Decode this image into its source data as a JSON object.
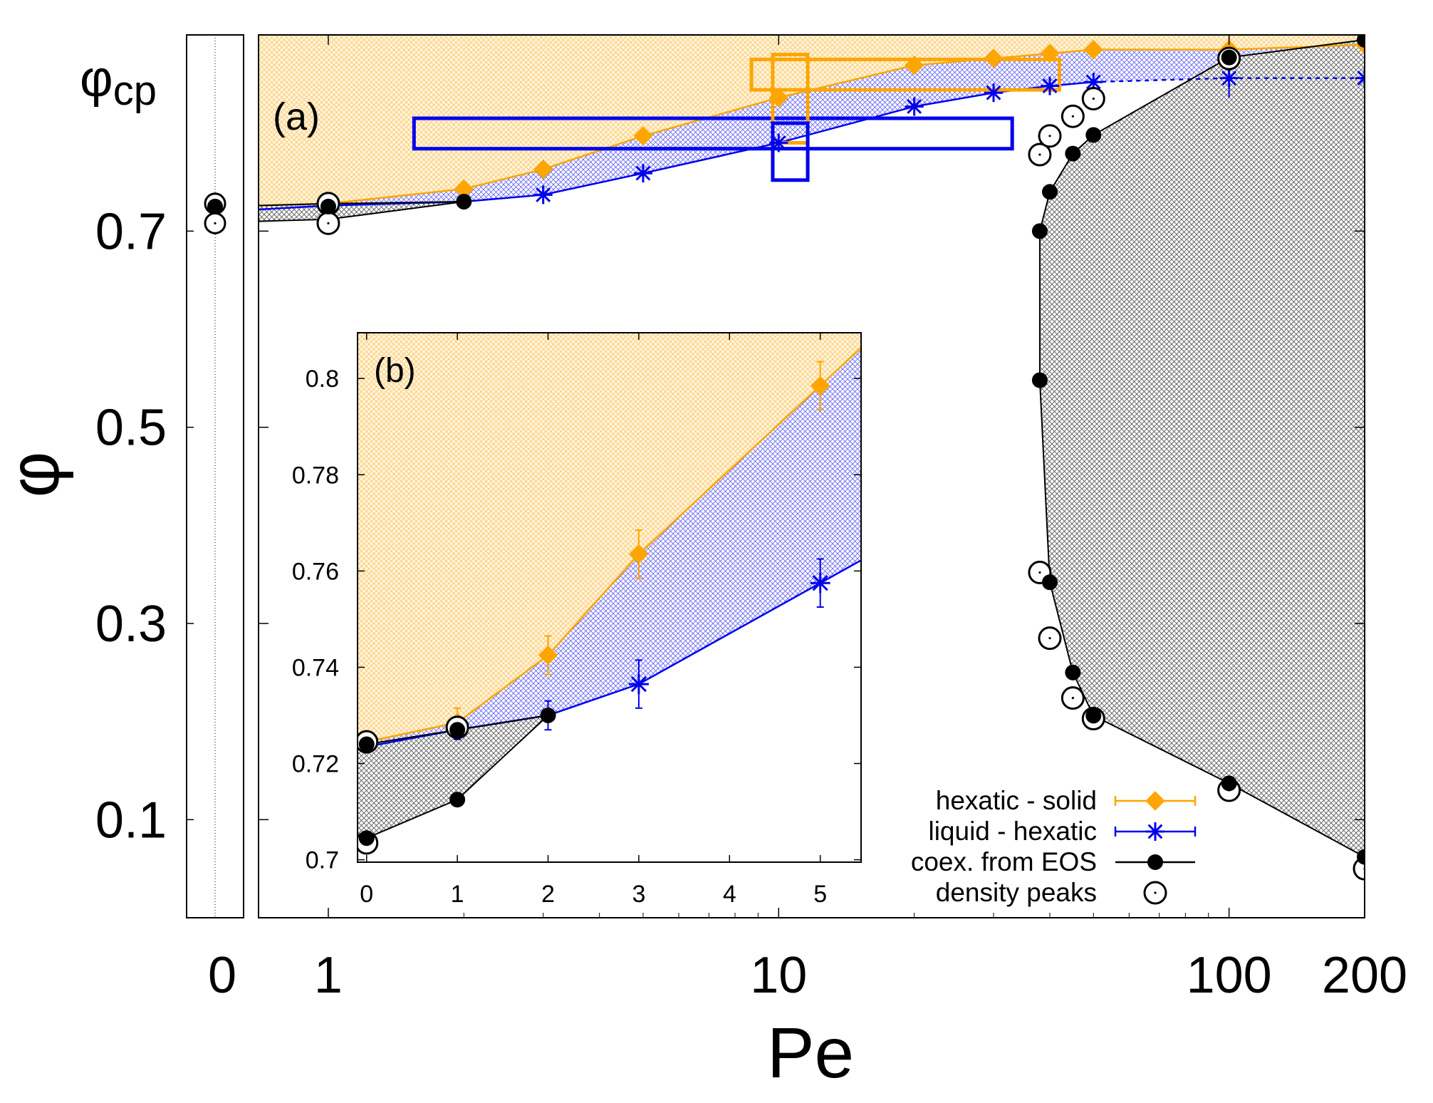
{
  "chart_data": {
    "type": "line",
    "title": "",
    "xlabel": "Pe",
    "ylabel": "φ",
    "colors": {
      "hexatic_solid": "#ffa500",
      "liquid_hexatic": "#0000ee",
      "coex": "#000000",
      "cp_line": "#000000"
    },
    "main": {
      "panel_label": "(a)",
      "xscale": "log",
      "xlim": [
        0.7,
        200
      ],
      "ylim": [
        0.0,
        0.9
      ],
      "xticks": [
        1,
        10,
        100,
        200
      ],
      "xticklabels": [
        "1",
        "10",
        "100",
        "200"
      ],
      "yticks": [
        0.1,
        0.3,
        0.5,
        0.7
      ],
      "yticklabels": [
        "0.1",
        "0.3",
        "0.5",
        "0.7"
      ],
      "phi_cp": 0.907,
      "phi_cp_label": "φ",
      "phi_cp_sub": "cp",
      "series": [
        {
          "name": "hexatic - solid",
          "key": "hexatic_solid",
          "marker": "diamond",
          "x": [
            0.7,
            1,
            2,
            3,
            5,
            10,
            20,
            30,
            40,
            50,
            100,
            200
          ],
          "y": [
            0.726,
            0.728,
            0.743,
            0.763,
            0.797,
            0.836,
            0.869,
            0.876,
            0.881,
            0.885,
            0.885,
            0.89
          ]
        },
        {
          "name": "liquid - hexatic",
          "key": "liquid_hexatic",
          "marker": "star",
          "x": [
            0.7,
            1,
            2,
            3,
            5,
            10,
            20,
            30,
            40,
            50,
            100,
            200
          ],
          "y": [
            0.722,
            0.726,
            0.73,
            0.737,
            0.759,
            0.79,
            0.827,
            0.841,
            0.848,
            0.852,
            0.856,
            0.856
          ]
        },
        {
          "name": "coex. from EOS",
          "key": "coex",
          "marker": "dot",
          "x": [
            0.7,
            1,
            2,
            200,
            100,
            50,
            45,
            40,
            38,
            38,
            40,
            45,
            50,
            100,
            200
          ],
          "y": [
            0.71,
            0.712,
            0.73,
            0.895,
            0.877,
            0.798,
            0.779,
            0.74,
            0.7,
            0.548,
            0.342,
            0.25,
            0.206,
            0.137,
            0.062
          ],
          "markers_x": [
            1,
            2,
            38,
            38,
            40,
            40,
            45,
            45,
            50,
            50,
            100,
            100,
            200,
            200
          ],
          "markers_y": [
            0.725,
            0.73,
            0.7,
            0.548,
            0.74,
            0.342,
            0.779,
            0.25,
            0.798,
            0.206,
            0.877,
            0.137,
            0.895,
            0.062
          ]
        },
        {
          "name": "density peaks",
          "key": "peaks",
          "marker": "circle-dot",
          "x": [
            1,
            1,
            38,
            40,
            45,
            50,
            38,
            40,
            45,
            50,
            100,
            100,
            200
          ],
          "y": [
            0.728,
            0.708,
            0.778,
            0.797,
            0.817,
            0.835,
            0.352,
            0.285,
            0.224,
            0.203,
            0.876,
            0.13,
            0.05
          ]
        }
      ],
      "boxes": [
        {
          "key": "liquid_hexatic",
          "x0": 1.55,
          "x1": 33,
          "y0": 0.784,
          "y1": 0.815
        },
        {
          "key": "hexatic_solid",
          "x0": 8.7,
          "x1": 42,
          "y0": 0.844,
          "y1": 0.875
        },
        {
          "key": "hexatic_solid",
          "x0": 9.7,
          "x1": 11.6,
          "y0": 0.79,
          "y1": 0.88
        },
        {
          "key": "liquid_hexatic",
          "x0": 9.7,
          "x1": 11.6,
          "y0": 0.752,
          "y1": 0.81
        }
      ]
    },
    "zero_panel": {
      "xticks": [
        0
      ],
      "xticklabels": [
        "0"
      ],
      "points": [
        {
          "series": "coex",
          "y": 0.725
        },
        {
          "series": "peaks",
          "y": 0.728
        },
        {
          "series": "peaks",
          "y": 0.708
        }
      ]
    },
    "inset": {
      "panel_label": "(b)",
      "xlim": [
        -0.1,
        5.45
      ],
      "ylim": [
        0.6995,
        0.8095
      ],
      "xticks": [
        0,
        1,
        2,
        3,
        4,
        5
      ],
      "xticklabels": [
        "0",
        "1",
        "2",
        "3",
        "4",
        "5"
      ],
      "yticks": [
        0.7,
        0.72,
        0.74,
        0.76,
        0.78,
        0.8
      ],
      "yticklabels": [
        "0.7",
        "0.72",
        "0.74",
        "0.76",
        "0.78",
        "0.8"
      ],
      "series": [
        {
          "key": "hexatic_solid",
          "x": [
            0,
            1,
            2,
            3,
            5
          ],
          "y": [
            0.7245,
            0.7285,
            0.7425,
            0.7635,
            0.7985
          ],
          "err": [
            0.001,
            0.003,
            0.004,
            0.005,
            0.005
          ]
        },
        {
          "key": "liquid_hexatic",
          "x": [
            0,
            1,
            2,
            3,
            5
          ],
          "y": [
            0.7235,
            0.727,
            0.73,
            0.7365,
            0.7575
          ],
          "err": [
            0.001,
            0.002,
            0.003,
            0.005,
            0.005
          ]
        },
        {
          "key": "coex_upper",
          "x": [
            0,
            1,
            2
          ],
          "y": [
            0.724,
            0.727,
            0.73
          ]
        },
        {
          "key": "coex_lower",
          "x": [
            0,
            1,
            2
          ],
          "y": [
            0.7045,
            0.7125,
            0.73
          ]
        },
        {
          "key": "peaks",
          "x": [
            0,
            1,
            0
          ],
          "y": [
            0.7245,
            0.7275,
            0.7035
          ]
        }
      ]
    },
    "legend": {
      "position": "bottom-right",
      "entries": [
        {
          "label": "hexatic - solid",
          "key": "hexatic_solid"
        },
        {
          "label": "liquid - hexatic",
          "key": "liquid_hexatic"
        },
        {
          "label": "coex. from EOS",
          "key": "coex"
        },
        {
          "label": "density peaks",
          "key": "peaks"
        }
      ]
    }
  }
}
